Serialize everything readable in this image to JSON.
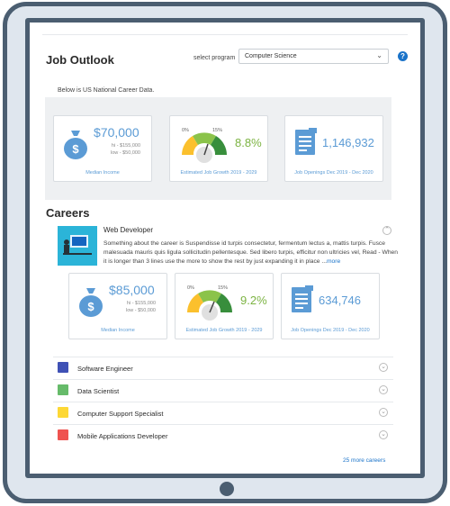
{
  "job_outlook": {
    "title": "Job Outlook",
    "select_label": "select program",
    "selected_program": "Computer Science",
    "help": "?",
    "note": "Below is US National Career Data.",
    "median_income": {
      "value": "$70,000",
      "hi": "hi - $155,000",
      "low": "low - $50,000",
      "caption": "Median Income"
    },
    "growth": {
      "value": "8.8%",
      "gauge_min_label": "0%",
      "gauge_max_label": "15%",
      "caption": "Estimated Job Growth 2019 - 2029"
    },
    "openings": {
      "value": "1,146,932",
      "caption": "Job Openings Dec 2019 - Dec 2020"
    }
  },
  "careers": {
    "title": "Careers",
    "featured": {
      "name": "Web Developer",
      "description": "Something about the career is Suspendisse id turpis consectetur, fermentum lectus a, mattis turpis. Fusce malesuada mauris quis ligula sollicitudin pellentesque. Sed libero turpis, efficitur non ultricies vel, Read -  When it is longer than 3 lines use the more to show the rest by just expanding it in place ...",
      "more_link": "more",
      "median_income": {
        "value": "$85,000",
        "hi": "hi - $155,000",
        "low": "low - $50,000",
        "caption": "Median Income"
      },
      "growth": {
        "value": "9.2%",
        "gauge_min_label": "0%",
        "gauge_max_label": "15%",
        "caption": "Estimated Job Growth 2019 - 2029"
      },
      "openings": {
        "value": "634,746",
        "caption": "Job Openings Dec 2019 - Dec 2020"
      }
    },
    "list": [
      {
        "name": "Software Engineer",
        "color": "#3f51b5"
      },
      {
        "name": "Data Scientist",
        "color": "#66bb6a"
      },
      {
        "name": "Computer Support Specialist",
        "color": "#fdd835"
      },
      {
        "name": "Mobile Applications Developer",
        "color": "#ef5350"
      }
    ],
    "more_link": "25 more careers"
  },
  "colors": {
    "accent": "#5b9bd5",
    "growth": "#7cb342",
    "link": "#1a73c9",
    "frame": "#4b5e71"
  }
}
